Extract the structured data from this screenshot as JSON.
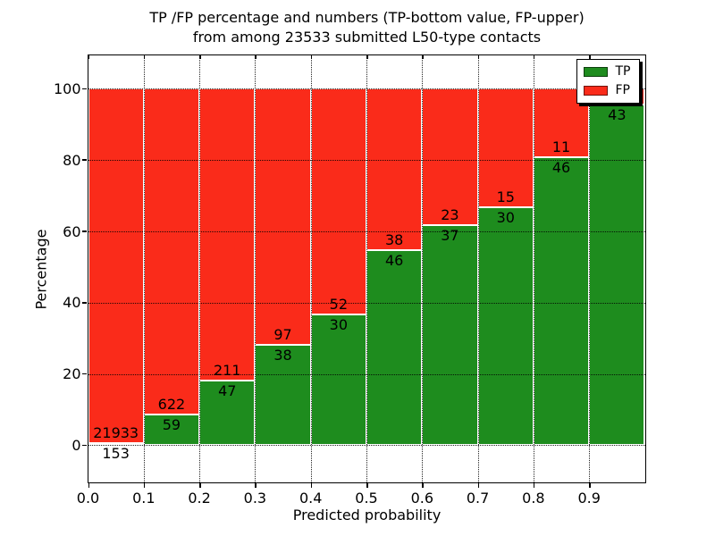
{
  "title": {
    "line1": "TP /FP percentage and numbers (TP-bottom value, FP-upper)",
    "line2": "from among 23533 submitted L50-type contacts"
  },
  "axes": {
    "xlabel": "Predicted probability",
    "ylabel": "Percentage",
    "x_tick_labels": [
      "0.0",
      "0.1",
      "0.2",
      "0.3",
      "0.4",
      "0.5",
      "0.6",
      "0.7",
      "0.8",
      "0.9"
    ],
    "y_tick_labels": [
      "0",
      "20",
      "40",
      "60",
      "80",
      "100"
    ]
  },
  "legend": {
    "items": [
      {
        "label": "TP",
        "color": "#1e8c1e"
      },
      {
        "label": "FP",
        "color": "#fa2b1a"
      }
    ],
    "position": "upper right"
  },
  "colors": {
    "tp_green": "#1e8c1e",
    "fp_red": "#fa2b1a",
    "bar_edge": "#ffffff",
    "grid": "#000000"
  },
  "chart_data": {
    "type": "bar",
    "stacked": true,
    "title": "TP /FP percentage and numbers (TP-bottom value, FP-upper)\nfrom among 23533 submitted L50-type contacts",
    "xlabel": "Predicted probability",
    "ylabel": "Percentage",
    "total_submitted_contacts": 23533,
    "bin_start": [
      0.0,
      0.1,
      0.2,
      0.3,
      0.4,
      0.5,
      0.6,
      0.7,
      0.8,
      0.9
    ],
    "bin_width": 0.1,
    "series": [
      {
        "name": "TP",
        "color": "#1e8c1e",
        "counts": [
          153,
          59,
          47,
          38,
          30,
          46,
          37,
          30,
          46,
          43
        ],
        "pct": [
          0.69,
          8.66,
          18.22,
          28.15,
          36.59,
          54.76,
          61.67,
          66.67,
          80.7,
          95.5
        ]
      },
      {
        "name": "FP",
        "color": "#fa2b1a",
        "counts": [
          21933,
          622,
          211,
          97,
          52,
          38,
          23,
          15,
          11,
          null
        ],
        "pct": [
          99.31,
          91.34,
          81.78,
          71.85,
          63.41,
          45.24,
          38.33,
          33.33,
          19.3,
          4.5
        ]
      }
    ],
    "last_fp_label_visible": false,
    "xlim": [
      0.0,
      1.0
    ],
    "ylim": [
      -10.3,
      109.5
    ],
    "x_ticks": [
      0.0,
      0.1,
      0.2,
      0.3,
      0.4,
      0.5,
      0.6,
      0.7,
      0.8,
      0.9
    ],
    "y_ticks": [
      0,
      20,
      40,
      60,
      80,
      100
    ],
    "grid": "dotted, drawn above bars",
    "legend_position": "upper right"
  }
}
